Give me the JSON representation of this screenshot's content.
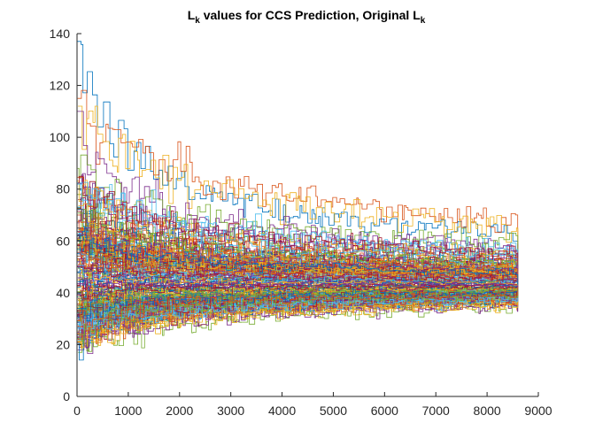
{
  "chart_data": {
    "type": "line",
    "title": {
      "prefix_main": "L",
      "prefix_sub": "k",
      "middle": " values for CCS Prediction, Original L",
      "suffix_sub": "k"
    },
    "xlabel": "",
    "ylabel": "",
    "xlim": [
      0,
      9000
    ],
    "ylim": [
      0,
      140
    ],
    "x_ticks": [
      0,
      1000,
      2000,
      3000,
      4000,
      5000,
      6000,
      7000,
      8000,
      9000
    ],
    "y_ticks": [
      0,
      20,
      40,
      60,
      80,
      100,
      120,
      140
    ],
    "grid": false,
    "legend": "none",
    "description": "Many step-like trajectories (about 200) converging from starting values spread between roughly 17 and 137 toward about 43 at x ≈ 8600.",
    "series_count": 200,
    "x_end": 8600,
    "converge_value": 43,
    "start_range": [
      17,
      137
    ],
    "highlighted_start_values": [
      137,
      115,
      112,
      110,
      88,
      82,
      76,
      73,
      70,
      68,
      65,
      62,
      58,
      55,
      52,
      48,
      45,
      40,
      35,
      30,
      27,
      25,
      22,
      20,
      18,
      17
    ],
    "series_colors": [
      "#0072BD",
      "#D95319",
      "#EDB120",
      "#7E2F8E",
      "#77AC30",
      "#4DBEEE",
      "#A2142F"
    ]
  }
}
